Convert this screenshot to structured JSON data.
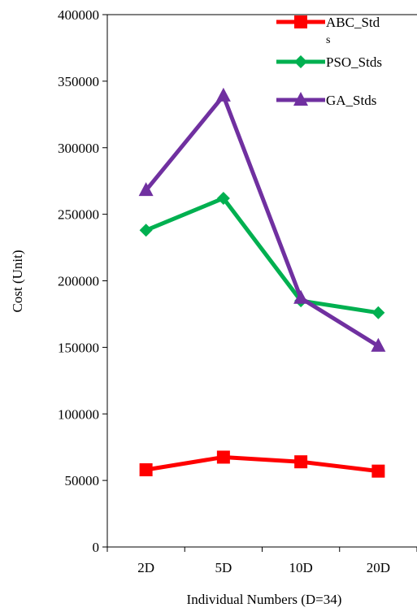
{
  "chart_data": {
    "type": "line",
    "title": "",
    "xlabel": "Individual Numbers (D=34)",
    "ylabel": "Cost (Unit)",
    "categories": [
      "2D",
      "5D",
      "10D",
      "20D"
    ],
    "ylim": [
      0,
      400000
    ],
    "yticks": [
      0,
      50000,
      100000,
      150000,
      200000,
      250000,
      300000,
      350000,
      400000
    ],
    "grid": false,
    "legend_position": "top-right",
    "series": [
      {
        "name": "ABC_Std",
        "name_wrap": "s",
        "color": "#ff0000",
        "marker": "square",
        "values": [
          58000,
          67500,
          64000,
          57000
        ]
      },
      {
        "name": "PSO_Stds",
        "color": "#00b050",
        "marker": "diamond",
        "values": [
          238000,
          262000,
          185000,
          176000
        ]
      },
      {
        "name": "GA_Stds",
        "color": "#7030a0",
        "marker": "triangle",
        "values": [
          268000,
          339000,
          187000,
          151000
        ]
      }
    ]
  }
}
